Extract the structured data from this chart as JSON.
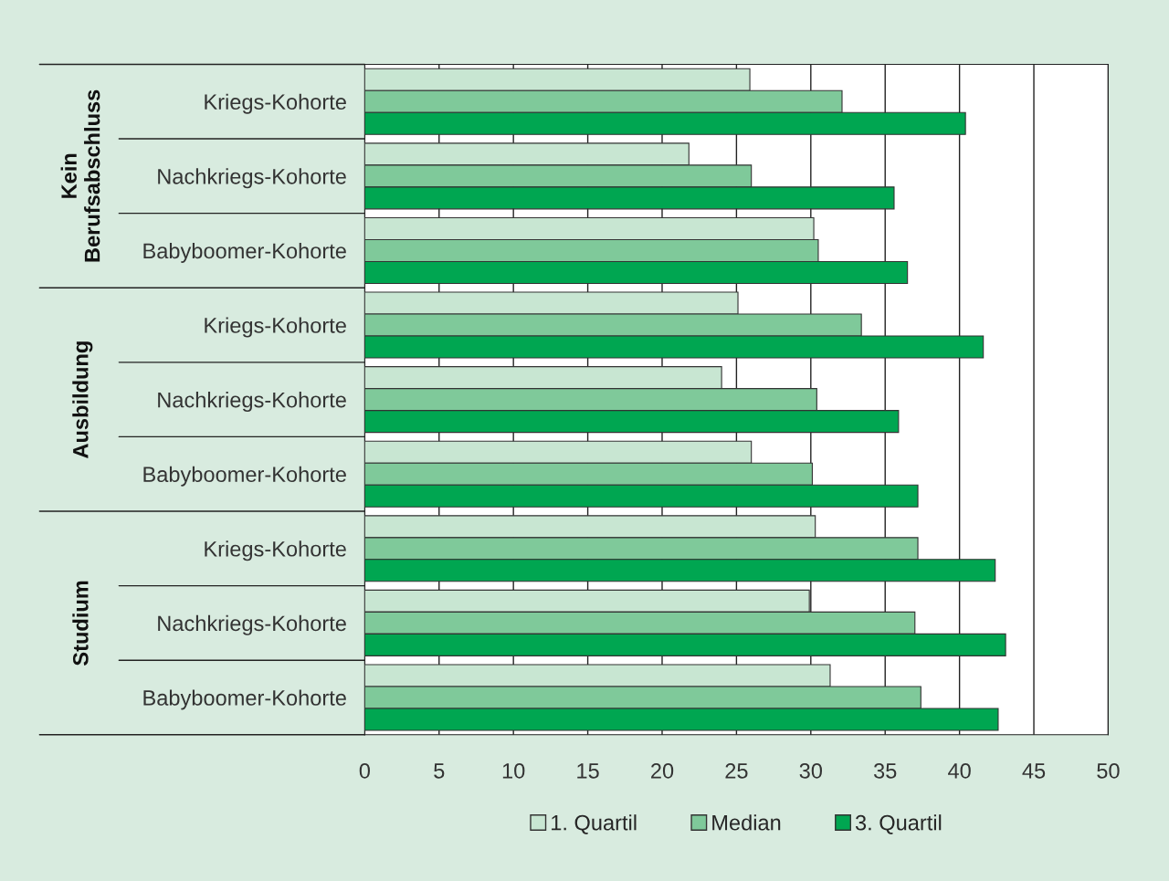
{
  "chart_data": {
    "type": "bar",
    "orientation": "horizontal",
    "categories": [
      "Kriegs-Kohorte",
      "Nachkriegs-Kohorte",
      "Babyboomer-Kohorte",
      "Kriegs-Kohorte",
      "Nachkriegs-Kohorte",
      "Babyboomer-Kohorte",
      "Kriegs-Kohorte",
      "Nachkriegs-Kohorte",
      "Babyboomer-Kohorte"
    ],
    "series": [
      {
        "name": "1. Quartil",
        "color": "#c8e6d2",
        "values": [
          25.9,
          21.8,
          30.2,
          25.1,
          24.0,
          26.0,
          30.3,
          29.9,
          31.3
        ]
      },
      {
        "name": "Median",
        "color": "#7fc99a",
        "values": [
          32.1,
          26.0,
          30.5,
          33.4,
          30.4,
          30.1,
          37.2,
          37.0,
          37.4
        ]
      },
      {
        "name": "3. Quartil",
        "color": "#00a651",
        "values": [
          40.4,
          35.6,
          36.5,
          41.6,
          35.9,
          37.2,
          42.4,
          43.1,
          42.6
        ]
      }
    ],
    "xlim": [
      0,
      50
    ],
    "xticks": [
      0,
      5,
      10,
      15,
      20,
      25,
      30,
      35,
      40,
      45,
      50
    ],
    "grid": "x",
    "legend": "bottom",
    "annotations": [
      "Kein\nBerufsabschluss",
      "Ausbildung",
      "Studium"
    ]
  }
}
